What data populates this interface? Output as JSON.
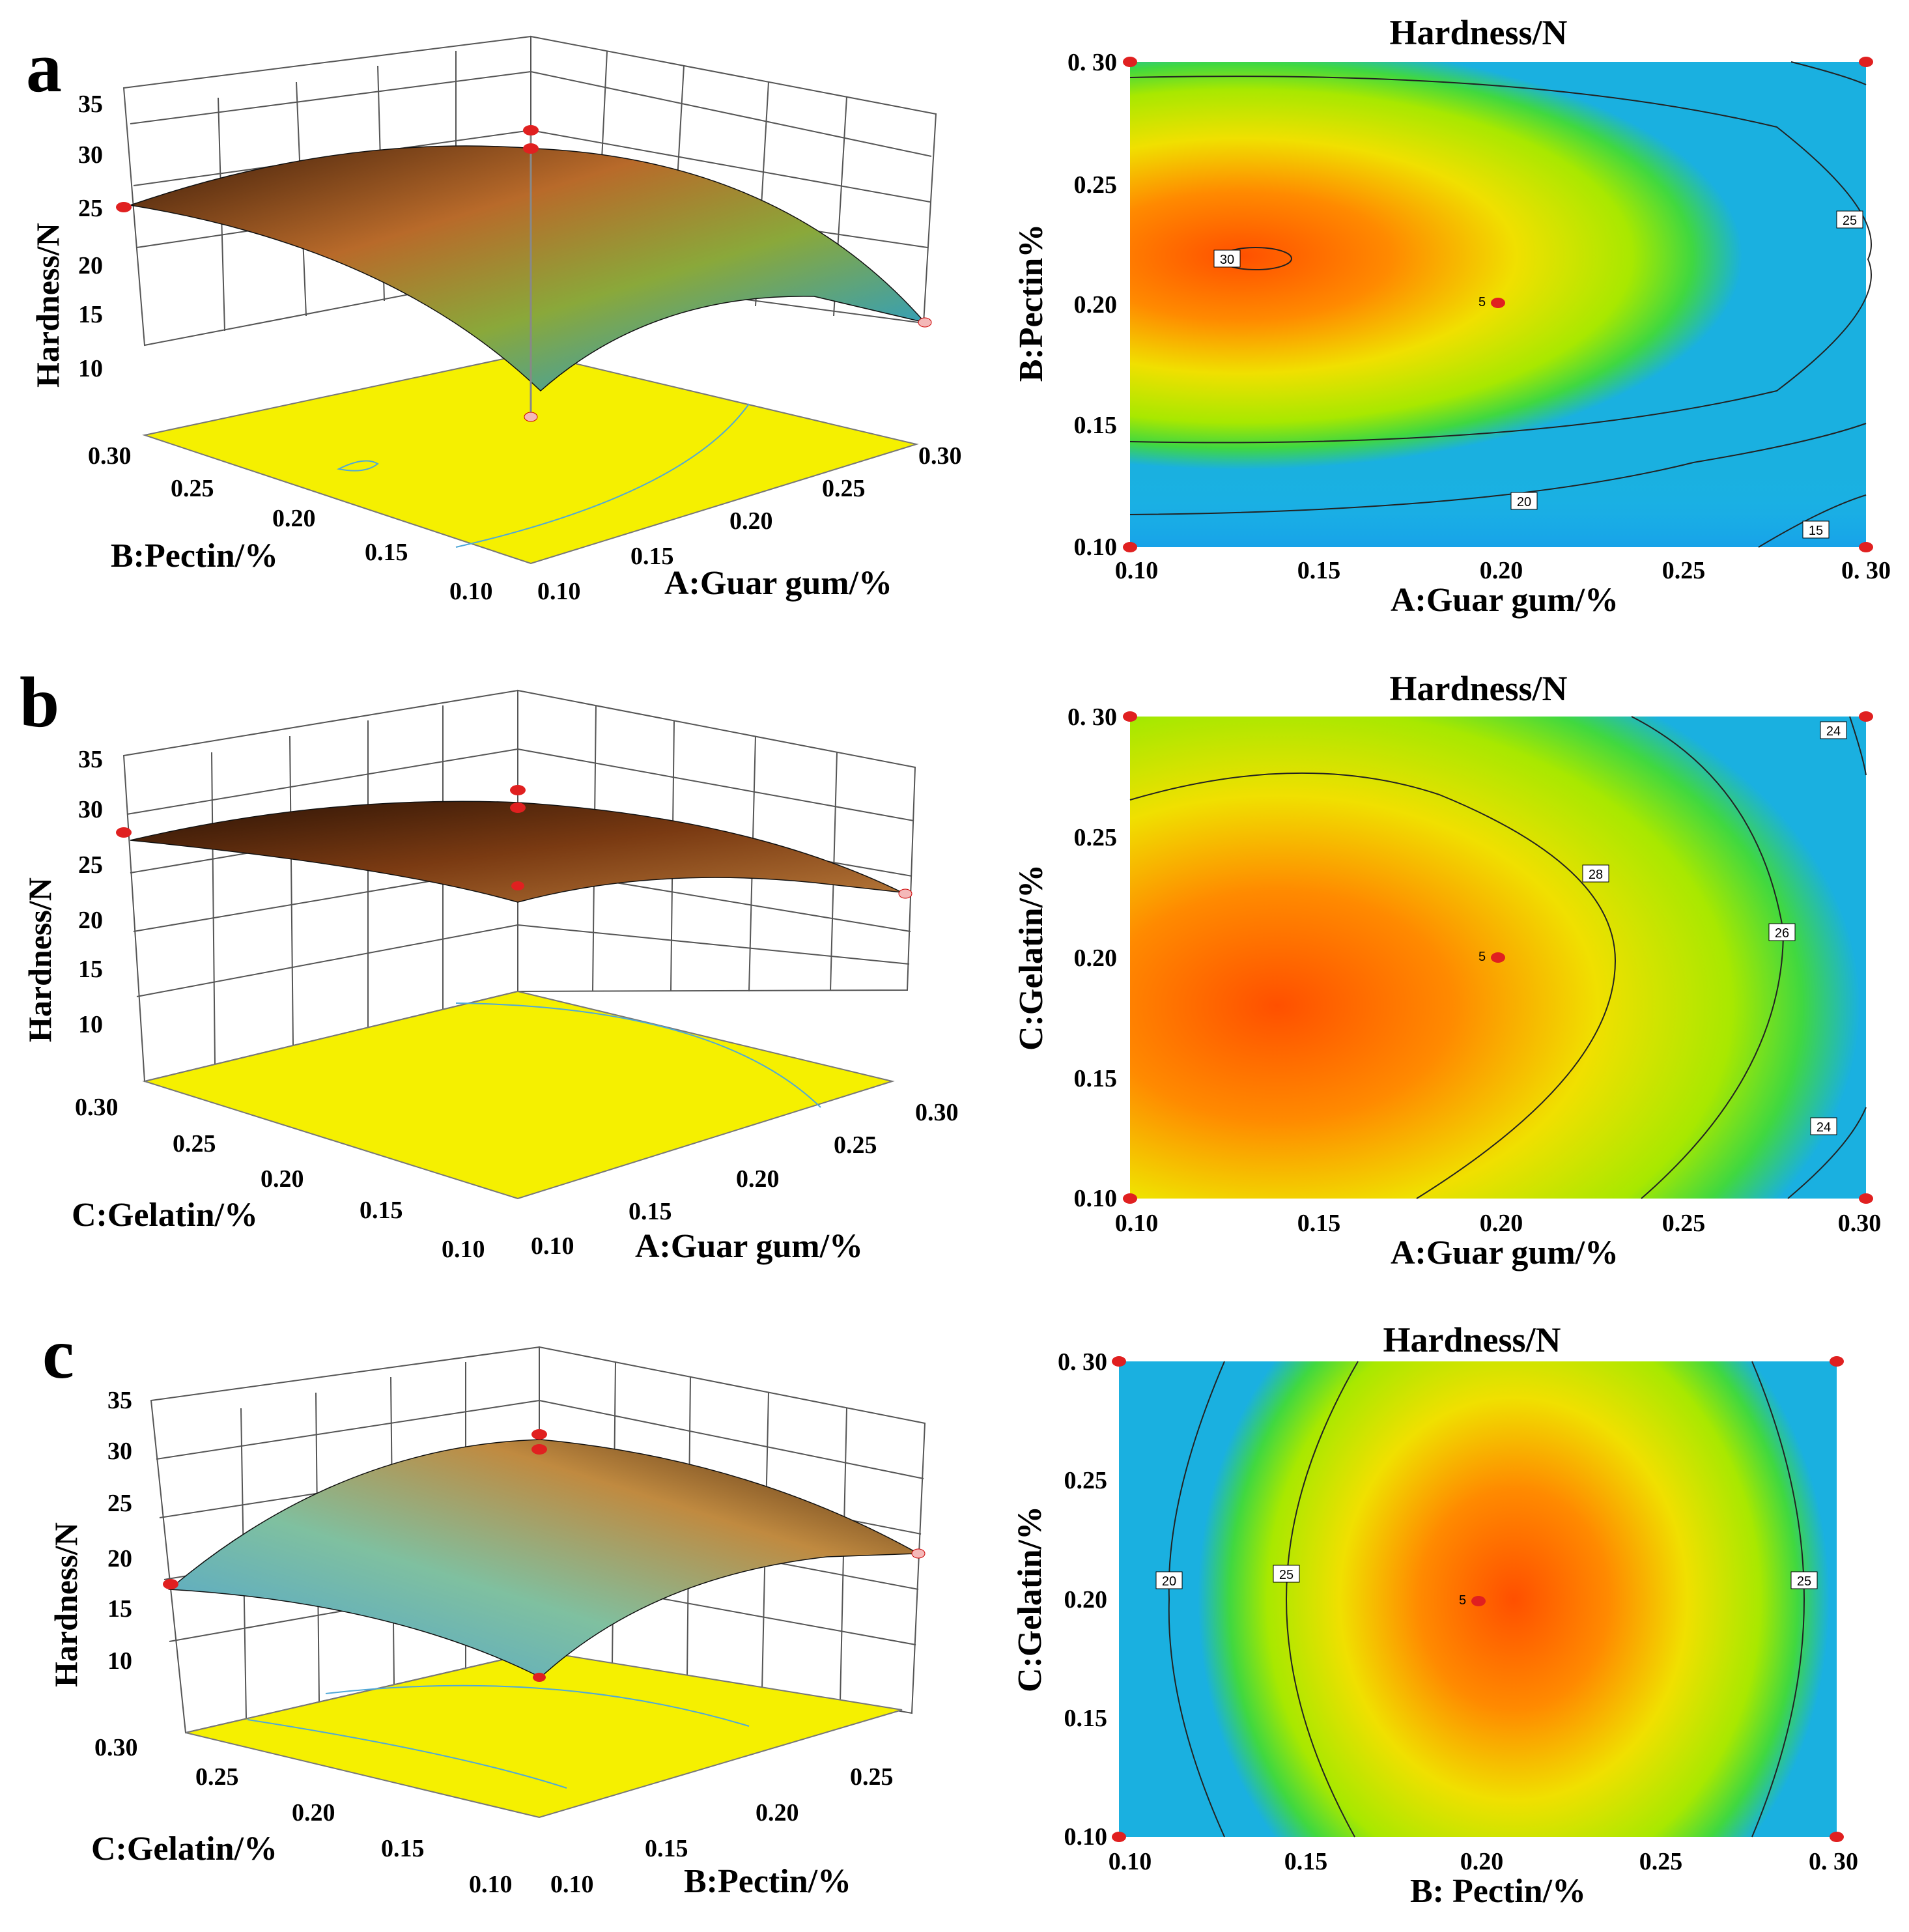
{
  "panels": [
    {
      "id": "a",
      "letter": "a",
      "surface": {
        "zlabel": "Hardness/N",
        "z_ticks": [
          "35",
          "30",
          "25",
          "20",
          "15",
          "10"
        ],
        "right_axis_label": "A:Guar gum/%",
        "right_axis_ticks": [
          "0.10",
          "0.15",
          "0.20",
          "0.25",
          "0.30"
        ],
        "left_axis_label": "B:Pectin/%",
        "left_axis_ticks": [
          "0.30",
          "0.25",
          "0.20",
          "0.15",
          "0.10"
        ]
      },
      "contour": {
        "title": "Hardness/N",
        "xlabel": "A:Guar gum/%",
        "ylabel": "B:Pectin%",
        "x_ticks": [
          "0.10",
          "0.15",
          "0.20",
          "0.25",
          "0. 30"
        ],
        "y_ticks": [
          "0. 30",
          "0.25",
          "0.20",
          "0.15",
          "0.10"
        ],
        "contour_labels": [
          "30",
          "25",
          "20",
          "15"
        ],
        "center_label": "5"
      }
    },
    {
      "id": "b",
      "letter": "b",
      "surface": {
        "zlabel": "Hardness/N",
        "z_ticks": [
          "35",
          "30",
          "25",
          "20",
          "15",
          "10"
        ],
        "right_axis_label": "A:Guar gum/%",
        "right_axis_ticks": [
          "0.10",
          "0.15",
          "0.20",
          "0.25",
          "0.30"
        ],
        "left_axis_label": "C:Gelatin/%",
        "left_axis_ticks": [
          "0.30",
          "0.25",
          "0.20",
          "0.15",
          "0.10"
        ]
      },
      "contour": {
        "title": "Hardness/N",
        "xlabel": "A:Guar gum/%",
        "ylabel": "C:Gelatin/%",
        "x_ticks": [
          "0.10",
          "0.15",
          "0.20",
          "0.25",
          "0.30"
        ],
        "y_ticks": [
          "0. 30",
          "0.25",
          "0.20",
          "0.15",
          "0.10"
        ],
        "contour_labels": [
          "24",
          "28",
          "26",
          "24"
        ],
        "center_label": "5"
      }
    },
    {
      "id": "c",
      "letter": "c",
      "surface": {
        "zlabel": "Hardness/N",
        "z_ticks": [
          "35",
          "30",
          "25",
          "20",
          "15",
          "10"
        ],
        "right_axis_label": "B:Pectin/%",
        "right_axis_ticks": [
          "0.10",
          "0.15",
          "0.20",
          "0.25"
        ],
        "left_axis_label": "C:Gelatin/%",
        "left_axis_ticks": [
          "0.30",
          "0.25",
          "0.20",
          "0.15",
          "0.10"
        ]
      },
      "contour": {
        "title": "Hardness/N",
        "xlabel": "B: Pectin/%",
        "ylabel": "C:Gelatin/%",
        "x_ticks": [
          "0.10",
          "0.15",
          "0.20",
          "0.25",
          "0. 30"
        ],
        "y_ticks": [
          "0. 30",
          "0.25",
          "0.20",
          "0.15",
          "0.10"
        ],
        "contour_labels": [
          "20",
          "25",
          "25"
        ],
        "center_label": "5"
      }
    }
  ],
  "chart_data": [
    {
      "type": "heatmap",
      "panel": "a",
      "title": "Hardness/N",
      "xlabel": "A:Guar gum/%",
      "ylabel": "B:Pectin%",
      "xlim": [
        0.1,
        0.3
      ],
      "ylim": [
        0.1,
        0.3
      ],
      "contour_levels": [
        30,
        25,
        20,
        15
      ],
      "peak": {
        "x": 0.13,
        "y": 0.22,
        "z": 30.5
      },
      "center_point": {
        "x": 0.2,
        "y": 0.2
      }
    },
    {
      "type": "heatmap",
      "panel": "b",
      "title": "Hardness/N",
      "xlabel": "A:Guar gum/%",
      "ylabel": "C:Gelatin/%",
      "xlim": [
        0.1,
        0.3
      ],
      "ylim": [
        0.1,
        0.3
      ],
      "contour_levels": [
        28,
        26,
        24
      ],
      "peak": {
        "x": 0.14,
        "y": 0.18,
        "z": 29.5
      },
      "center_point": {
        "x": 0.2,
        "y": 0.2
      }
    },
    {
      "type": "heatmap",
      "panel": "c",
      "title": "Hardness/N",
      "xlabel": "B: Pectin/%",
      "ylabel": "C:Gelatin/%",
      "xlim": [
        0.1,
        0.3
      ],
      "ylim": [
        0.1,
        0.3
      ],
      "contour_levels": [
        20,
        25
      ],
      "peak": {
        "x": 0.21,
        "y": 0.2,
        "z": 29.5
      },
      "center_point": {
        "x": 0.2,
        "y": 0.2
      }
    }
  ]
}
